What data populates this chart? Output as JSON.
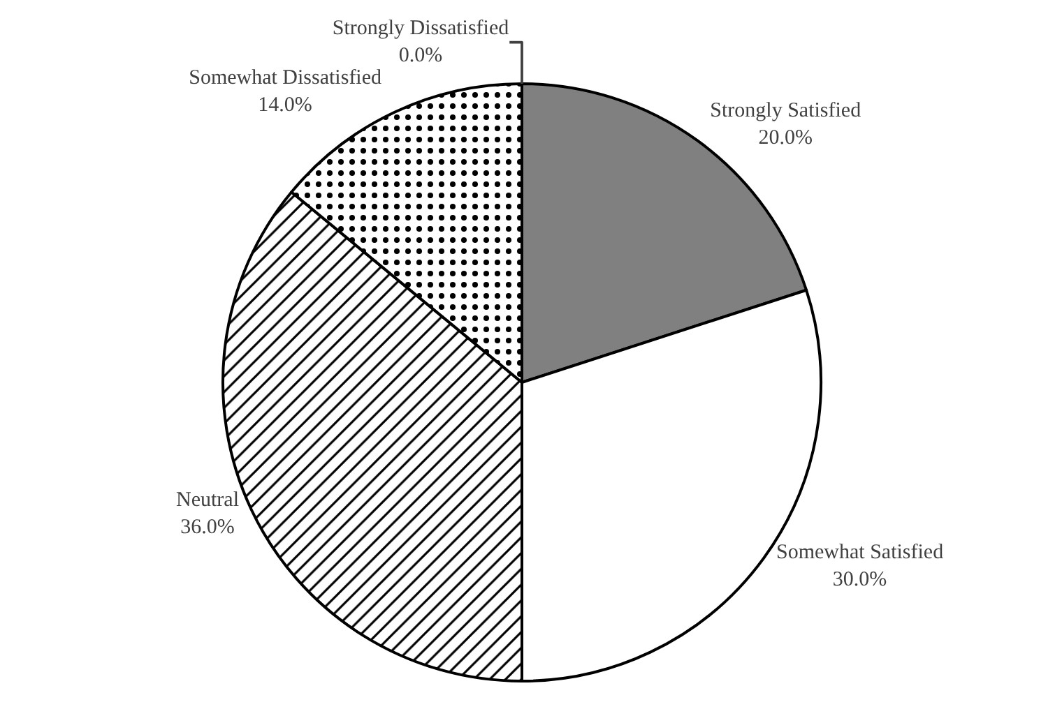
{
  "chart_data": {
    "type": "pie",
    "categories": [
      "Strongly Satisfied",
      "Somewhat Satisfied",
      "Neutral",
      "Somewhat Dissatisfied",
      "Strongly Dissatisfied"
    ],
    "values": [
      20,
      30,
      36,
      14,
      0
    ],
    "value_labels": [
      "20.0%",
      "30.0%",
      "36.0%",
      "14.0%",
      "0.0%"
    ],
    "colors": [
      "#808080",
      "#ffffff",
      "#000000",
      "#000000",
      "#ffffff"
    ],
    "legend": false
  }
}
